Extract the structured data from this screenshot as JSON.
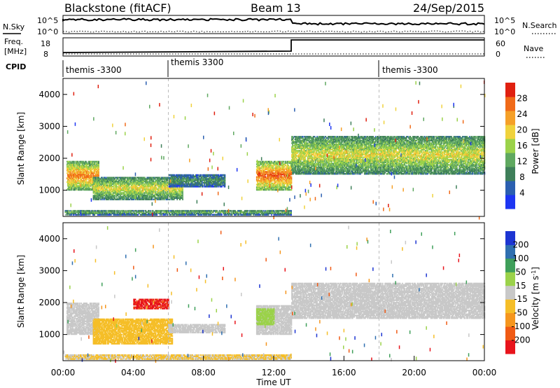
{
  "header": {
    "station": "Blackstone (fitACF)",
    "beam": "Beam 13",
    "date": "24/Sep/2015"
  },
  "noise_panel": {
    "left_label": "N.Sky",
    "right_label": "N.Search",
    "left_ticks": [
      "10^5",
      "10^0"
    ],
    "right_ticks": [
      "10^5",
      "10^0"
    ]
  },
  "freq_panel": {
    "left_label_1": "Freq.",
    "left_label_2": "[MHz]",
    "right_label": "Nave",
    "left_ticks": [
      "18",
      "8"
    ],
    "right_ticks": [
      "60",
      "0"
    ]
  },
  "cpid": {
    "label": "CPID",
    "segments": [
      {
        "text": "themis -3300",
        "start_hour": 0.0
      },
      {
        "text": "themis 3300",
        "start_hour": 6.0
      },
      {
        "text": "themis -3300",
        "start_hour": 18.0
      }
    ]
  },
  "x_axis": {
    "label": "Time UT",
    "ticks": [
      "00:00",
      "04:00",
      "08:00",
      "12:00",
      "16:00",
      "20:00",
      "00:00"
    ]
  },
  "chart_data": [
    {
      "type": "heatmap",
      "name": "power",
      "title": "",
      "xlabel": "",
      "ylabel": "Slant Range [km]",
      "xlim": [
        0,
        24
      ],
      "ylim": [
        180,
        4500
      ],
      "yticks": [
        1000,
        2000,
        3000,
        4000
      ],
      "colorbar_label": "Power [dB]",
      "colorbar_ticks": [
        "4",
        "8",
        "12",
        "16",
        "20",
        "24",
        "28"
      ],
      "colorbar_range": [
        0,
        30
      ],
      "colors": [
        "#1d35f2",
        "#2b5fb0",
        "#3f7f5a",
        "#5fa860",
        "#9bd24a",
        "#f0d23c",
        "#f5a028",
        "#f06a18",
        "#e02010"
      ],
      "regions": [
        {
          "t": [
            0.2,
            2.0
          ],
          "r": [
            1000,
            1900
          ],
          "level": 24,
          "label": "morning_arc"
        },
        {
          "t": [
            1.7,
            6.8
          ],
          "r": [
            700,
            1400
          ],
          "level": 18,
          "label": "pre_noon_band"
        },
        {
          "t": [
            6.0,
            9.2
          ],
          "r": [
            1100,
            1500
          ],
          "level": 10,
          "label": "weak_echo"
        },
        {
          "t": [
            0.1,
            13.0
          ],
          "r": [
            220,
            380
          ],
          "level": 12,
          "label": "ground_scatter"
        },
        {
          "t": [
            11.0,
            13.0
          ],
          "r": [
            1000,
            1900
          ],
          "level": 26,
          "label": "noon_arc"
        },
        {
          "t": [
            13.0,
            24.0
          ],
          "r": [
            1500,
            2700
          ],
          "level": 18,
          "label": "afternoon_band"
        }
      ]
    },
    {
      "type": "heatmap",
      "name": "velocity",
      "title": "",
      "xlabel": "Time UT",
      "ylabel": "Slant Range [km]",
      "xlim": [
        0,
        24
      ],
      "ylim": [
        180,
        4500
      ],
      "yticks": [
        1000,
        2000,
        3000,
        4000
      ],
      "colorbar_label": "Velocity [m s^-1]",
      "colorbar_ticks": [
        "-200",
        "-100",
        "-50",
        "-15",
        "15",
        "50",
        "100",
        "200"
      ],
      "colorbar_range": [
        -250,
        250
      ],
      "colors": [
        "#e8141c",
        "#f05a14",
        "#f5961e",
        "#f5be28",
        "#c8c8c8",
        "#9bd24a",
        "#3f9f5a",
        "#2f6fb0",
        "#1d35d2"
      ],
      "regions": [
        {
          "t": [
            0.2,
            2.0
          ],
          "r": [
            1000,
            2000
          ],
          "value": 0,
          "label": "morning_arc_gs"
        },
        {
          "t": [
            1.7,
            6.2
          ],
          "r": [
            700,
            1500
          ],
          "value": -60,
          "label": "pre_noon_flow"
        },
        {
          "t": [
            4.0,
            6.0
          ],
          "r": [
            1800,
            2100
          ],
          "value": -200,
          "label": "strong_away"
        },
        {
          "t": [
            6.0,
            9.2
          ],
          "r": [
            1050,
            1300
          ],
          "value": 0,
          "label": "weak_gs"
        },
        {
          "t": [
            0.1,
            13.0
          ],
          "r": [
            220,
            380
          ],
          "value": -30,
          "label": "near_range"
        },
        {
          "t": [
            11.0,
            13.0
          ],
          "r": [
            1000,
            1900
          ],
          "value": 0,
          "label": "noon_gs"
        },
        {
          "t": [
            11.0,
            12.0
          ],
          "r": [
            1300,
            1800
          ],
          "value": 60,
          "label": "noon_toward"
        },
        {
          "t": [
            13.0,
            24.0
          ],
          "r": [
            1500,
            2600
          ],
          "value": 0,
          "label": "afternoon_gs"
        }
      ]
    }
  ]
}
